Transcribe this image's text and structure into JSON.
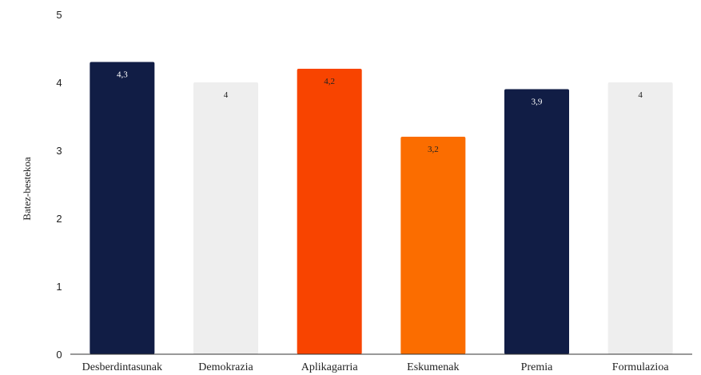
{
  "chart_data": {
    "type": "bar",
    "title": "",
    "xlabel": "",
    "ylabel": "Batez-bestekoa",
    "ylim": [
      0,
      5
    ],
    "yticks": [
      "0",
      "1",
      "2",
      "3",
      "4",
      "5"
    ],
    "grid": false,
    "legend": "none",
    "categories": [
      "Desberdintasunak",
      "Demokrazia",
      "Aplikagarria",
      "Eskumenak",
      "Premia",
      "Formulazioa"
    ],
    "values": [
      4.3,
      4,
      4.2,
      3.2,
      3.9,
      4
    ],
    "value_labels": [
      "4,3",
      "4",
      "4,2",
      "3,2",
      "3,9",
      "4"
    ],
    "colors": [
      "#111d45",
      "#eeeeee",
      "#f84400",
      "#fb6d00",
      "#111d45",
      "#eeeeee"
    ],
    "label_colors": [
      "#ffffff",
      "#222222",
      "#222222",
      "#222222",
      "#ffffff",
      "#222222"
    ]
  }
}
